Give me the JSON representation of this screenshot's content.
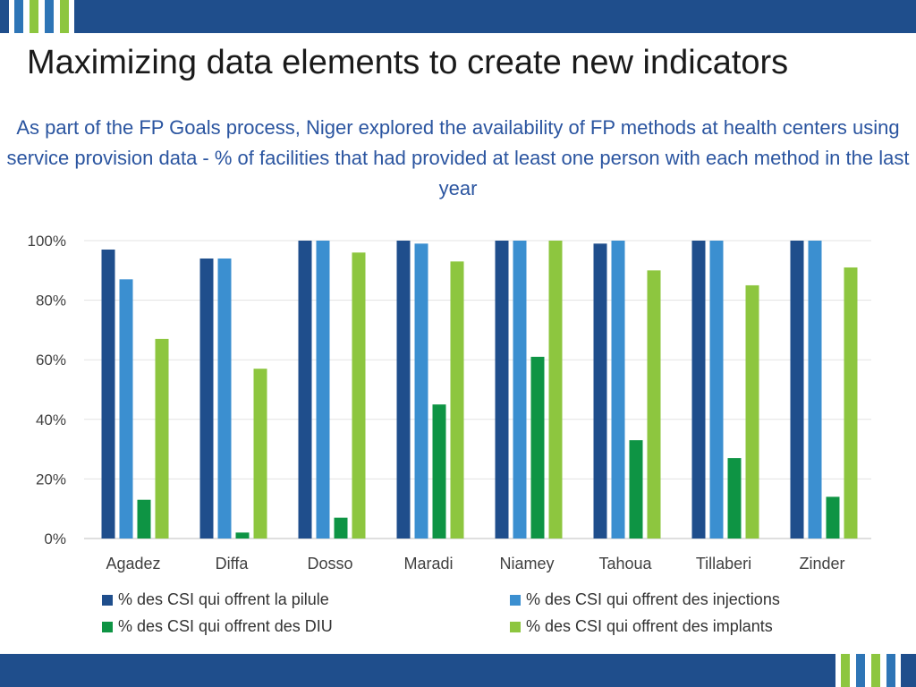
{
  "slide": {
    "title": "Maximizing data elements to create new indicators",
    "subtitle": "As part of the FP Goals process, Niger explored the availability of FP methods at health centers using service provision data  - % of facilities that had provided at least one person with each method in the last year"
  },
  "colors": {
    "band": "#1f4e8c",
    "stripe_dark": "#2e75b6",
    "stripe_light": "#8dc63f",
    "series": [
      "#1f4e8c",
      "#3b8fd0",
      "#0e9444",
      "#8dc63f"
    ]
  },
  "chart_data": {
    "type": "bar",
    "categories": [
      "Agadez",
      "Diffa",
      "Dosso",
      "Maradi",
      "Niamey",
      "Tahoua",
      "Tillaberi",
      "Zinder"
    ],
    "series": [
      {
        "name": "% des CSI qui offrent la pilule",
        "values": [
          97,
          94,
          100,
          100,
          100,
          99,
          100,
          100
        ]
      },
      {
        "name": "% des CSI qui offrent des injections",
        "values": [
          87,
          94,
          100,
          99,
          100,
          100,
          100,
          100
        ]
      },
      {
        "name": "% des CSI qui offrent des DIU",
        "values": [
          13,
          2,
          7,
          45,
          61,
          33,
          27,
          14
        ]
      },
      {
        "name": "% des CSI qui offrent des implants",
        "values": [
          67,
          57,
          96,
          93,
          100,
          90,
          85,
          91
        ]
      }
    ],
    "yticks": [
      "0%",
      "20%",
      "40%",
      "60%",
      "80%",
      "100%"
    ],
    "ylim": [
      0,
      100
    ],
    "grid": true,
    "legend": "bottom",
    "title": "",
    "xlabel": "",
    "ylabel": ""
  }
}
